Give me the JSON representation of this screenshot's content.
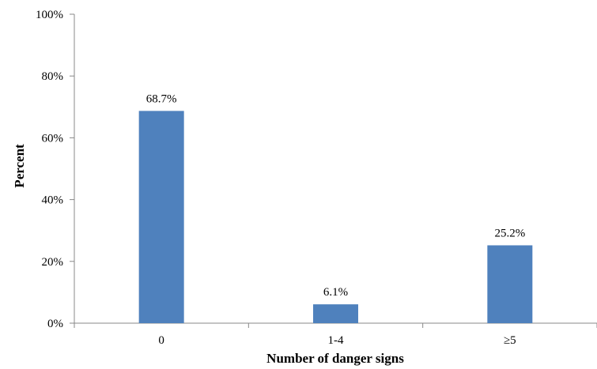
{
  "chart_data": {
    "type": "bar",
    "categories": [
      "0",
      "1-4",
      "≥5"
    ],
    "values": [
      68.7,
      6.1,
      25.2
    ],
    "data_labels": [
      "68.7%",
      "6.1%",
      "25.2%"
    ],
    "title": "",
    "xlabel": "Number of danger signs",
    "ylabel": "Percent",
    "ylim": [
      0,
      100
    ],
    "yticks": [
      0,
      20,
      40,
      60,
      80,
      100
    ],
    "ytick_labels": [
      "0%",
      "20%",
      "40%",
      "60%",
      "80%",
      "100%"
    ],
    "grid": false,
    "legend": "none",
    "bar_color": "#4f81bd"
  }
}
